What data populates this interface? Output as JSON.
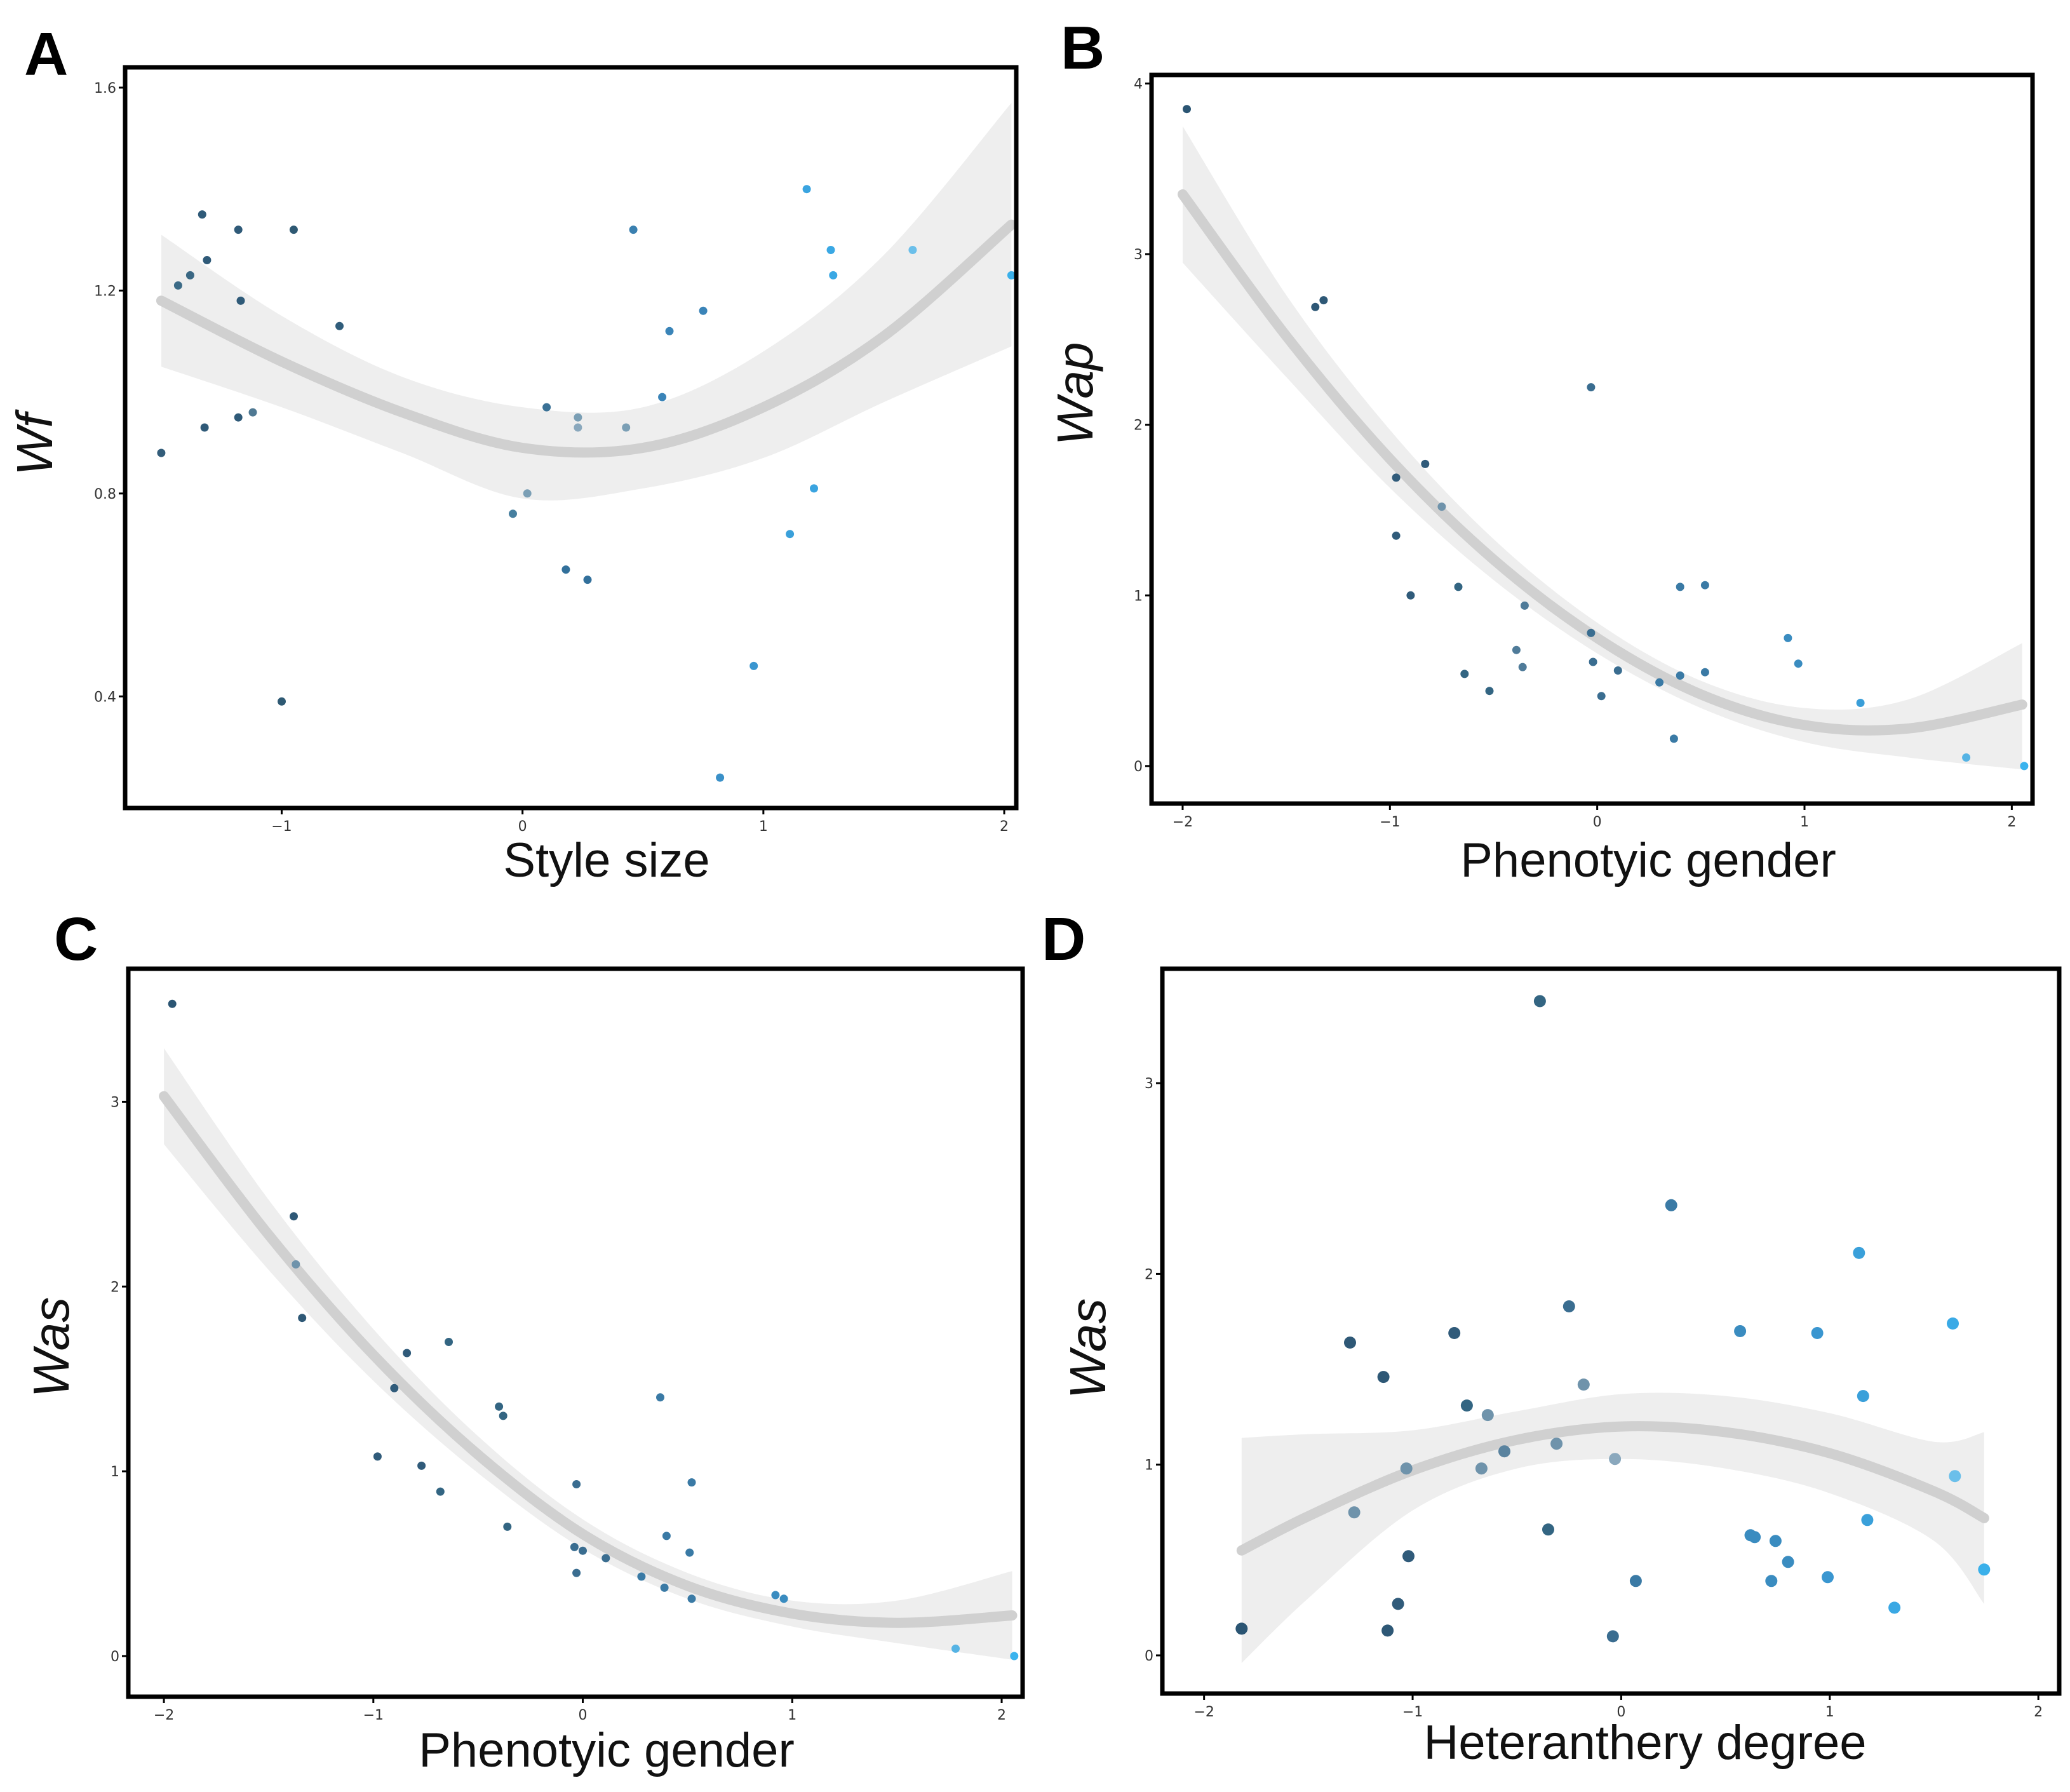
{
  "chart_data": [
    {
      "label": "A",
      "type": "scatter",
      "xlabel": "Style size",
      "ylabel": "Wf",
      "xlim": [
        -1.65,
        2.05
      ],
      "ylim": [
        0.18,
        1.64
      ],
      "xticks": [
        -1,
        0,
        1,
        2
      ],
      "yticks": [
        0.4,
        0.8,
        1.2,
        1.6
      ],
      "points": [
        [
          -1.5,
          0.88,
          "#335d7a"
        ],
        [
          -1.43,
          1.21,
          "#3b6a86"
        ],
        [
          -1.38,
          1.23,
          "#3a6783"
        ],
        [
          -1.33,
          1.35,
          "#2f5a78"
        ],
        [
          -1.31,
          1.26,
          "#2f5a78"
        ],
        [
          -1.32,
          0.93,
          "#2f5a78"
        ],
        [
          -1.18,
          1.32,
          "#2f5a78"
        ],
        [
          -1.17,
          1.18,
          "#2f5a78"
        ],
        [
          -1.18,
          0.95,
          "#2f5a78"
        ],
        [
          -1.12,
          0.96,
          "#4f7993"
        ],
        [
          -1.0,
          0.39,
          "#2e5973"
        ],
        [
          -0.95,
          1.32,
          "#2e5973"
        ],
        [
          -0.76,
          1.13,
          "#305d7b"
        ],
        [
          -0.04,
          0.76,
          "#467f9f"
        ],
        [
          0.02,
          0.8,
          "#7b9fb5"
        ],
        [
          0.1,
          0.97,
          "#3a7196"
        ],
        [
          0.18,
          0.65,
          "#32709b"
        ],
        [
          0.23,
          0.93,
          "#8aa8bd"
        ],
        [
          0.23,
          0.95,
          "#7b9fb5"
        ],
        [
          0.27,
          0.63,
          "#32709b"
        ],
        [
          0.43,
          0.93,
          "#7b9fb5"
        ],
        [
          0.46,
          1.32,
          "#3a80b0"
        ],
        [
          0.58,
          0.99,
          "#3a84b8"
        ],
        [
          0.61,
          1.12,
          "#3a84b8"
        ],
        [
          0.75,
          1.16,
          "#3a84b8"
        ],
        [
          0.82,
          0.24,
          "#3a90c8"
        ],
        [
          0.96,
          0.46,
          "#3a96d0"
        ],
        [
          1.11,
          0.72,
          "#3aa0da"
        ],
        [
          1.18,
          1.4,
          "#3aa4e0"
        ],
        [
          1.21,
          0.81,
          "#3aa4e0"
        ],
        [
          1.28,
          1.28,
          "#3aa8e4"
        ],
        [
          1.29,
          1.23,
          "#3aa8e4"
        ],
        [
          1.62,
          1.28,
          "#6bbfea"
        ],
        [
          2.03,
          1.23,
          "#3ab0ea"
        ]
      ],
      "fit_x": [
        -1.5,
        -1.0,
        -0.5,
        0.0,
        0.5,
        1.0,
        1.5,
        2.03
      ],
      "fit_y": [
        1.18,
        1.06,
        0.96,
        0.89,
        0.89,
        0.97,
        1.11,
        1.33
      ],
      "band_lower": [
        1.05,
        0.97,
        0.88,
        0.79,
        0.81,
        0.87,
        0.98,
        1.09
      ],
      "band_upper": [
        1.31,
        1.15,
        1.03,
        0.97,
        0.97,
        1.08,
        1.27,
        1.57
      ]
    },
    {
      "label": "B",
      "type": "scatter",
      "xlabel": "Phenotyic gender",
      "ylabel": "Wap",
      "xlim": [
        -2.15,
        2.1
      ],
      "ylim": [
        -0.22,
        4.05
      ],
      "xticks": [
        -2,
        -1,
        0,
        1,
        2
      ],
      "yticks": [
        0,
        1,
        2,
        3,
        4
      ],
      "points": [
        [
          -1.98,
          3.85,
          "#2b5573"
        ],
        [
          -1.36,
          2.69,
          "#2e5876"
        ],
        [
          -1.32,
          2.73,
          "#2e5876"
        ],
        [
          -0.97,
          1.69,
          "#305b7a"
        ],
        [
          -0.97,
          1.35,
          "#305b7a"
        ],
        [
          -0.9,
          1.0,
          "#305b7a"
        ],
        [
          -0.83,
          1.77,
          "#305b7a"
        ],
        [
          -0.75,
          1.52,
          "#6f93ab"
        ],
        [
          -0.67,
          1.05,
          "#336582"
        ],
        [
          -0.64,
          0.54,
          "#336582"
        ],
        [
          -0.52,
          0.44,
          "#336582"
        ],
        [
          -0.39,
          0.68,
          "#4f7b99"
        ],
        [
          -0.36,
          0.58,
          "#4f7b99"
        ],
        [
          -0.35,
          0.94,
          "#4f7b99"
        ],
        [
          -0.03,
          2.22,
          "#3a6d90"
        ],
        [
          -0.02,
          0.61,
          "#3a6d90"
        ],
        [
          -0.03,
          0.78,
          "#3a6d90"
        ],
        [
          0.02,
          0.41,
          "#3a6d90"
        ],
        [
          0.1,
          0.56,
          "#3a6d90"
        ],
        [
          0.3,
          0.49,
          "#3a7aa5"
        ],
        [
          0.37,
          0.16,
          "#3a7aa5"
        ],
        [
          0.4,
          0.53,
          "#3a7aa5"
        ],
        [
          0.4,
          1.05,
          "#3a7aa5"
        ],
        [
          0.52,
          1.06,
          "#3a7aa5"
        ],
        [
          0.52,
          0.55,
          "#3a7aa5"
        ],
        [
          0.92,
          0.75,
          "#3a8cc0"
        ],
        [
          0.97,
          0.6,
          "#3a8cc0"
        ],
        [
          1.27,
          0.37,
          "#3a9ed8"
        ],
        [
          1.78,
          0.05,
          "#55b3e4"
        ],
        [
          2.06,
          0.0,
          "#3ab3ee"
        ]
      ],
      "fit_x": [
        -2.0,
        -1.5,
        -1.0,
        -0.5,
        0.0,
        0.5,
        1.0,
        1.5,
        2.05
      ],
      "fit_y": [
        3.35,
        2.52,
        1.8,
        1.21,
        0.75,
        0.42,
        0.24,
        0.22,
        0.36
      ],
      "band_lower": [
        2.95,
        2.28,
        1.63,
        1.09,
        0.66,
        0.34,
        0.14,
        0.05,
        -0.02
      ],
      "band_upper": [
        3.75,
        2.76,
        1.97,
        1.33,
        0.84,
        0.5,
        0.34,
        0.39,
        0.72
      ]
    },
    {
      "label": "C",
      "type": "scatter",
      "xlabel": "Phenotyic gender",
      "ylabel": "Was",
      "xlim": [
        -2.17,
        2.1
      ],
      "ylim": [
        -0.22,
        3.72
      ],
      "xticks": [
        -2,
        -1,
        0,
        1,
        2
      ],
      "yticks": [
        0,
        1,
        2,
        3
      ],
      "points": [
        [
          -1.96,
          3.53,
          "#2b5573"
        ],
        [
          -1.38,
          2.38,
          "#2e5876"
        ],
        [
          -1.37,
          2.12,
          "#6f93ab"
        ],
        [
          -1.34,
          1.83,
          "#2e5876"
        ],
        [
          -0.98,
          1.08,
          "#305b7a"
        ],
        [
          -0.9,
          1.45,
          "#305b7a"
        ],
        [
          -0.84,
          1.64,
          "#305b7a"
        ],
        [
          -0.77,
          1.03,
          "#305b7a"
        ],
        [
          -0.68,
          0.89,
          "#336582"
        ],
        [
          -0.64,
          1.7,
          "#336582"
        ],
        [
          -0.4,
          1.35,
          "#336582"
        ],
        [
          -0.38,
          1.3,
          "#336582"
        ],
        [
          -0.36,
          0.7,
          "#336582"
        ],
        [
          -0.04,
          0.59,
          "#3a6d90"
        ],
        [
          -0.03,
          0.45,
          "#3a6d90"
        ],
        [
          -0.03,
          0.93,
          "#3a6d90"
        ],
        [
          0.0,
          0.57,
          "#3a6d90"
        ],
        [
          0.11,
          0.53,
          "#3a6d90"
        ],
        [
          0.28,
          0.43,
          "#3a7aa5"
        ],
        [
          0.37,
          1.4,
          "#3a7aa5"
        ],
        [
          0.39,
          0.37,
          "#3a7aa5"
        ],
        [
          0.4,
          0.65,
          "#3a7aa5"
        ],
        [
          0.51,
          0.56,
          "#3a7aa5"
        ],
        [
          0.52,
          0.94,
          "#3a7aa5"
        ],
        [
          0.52,
          0.31,
          "#3a7aa5"
        ],
        [
          0.92,
          0.33,
          "#3a8cc0"
        ],
        [
          0.96,
          0.31,
          "#3a8cc0"
        ],
        [
          1.78,
          0.04,
          "#55b3e4"
        ],
        [
          2.06,
          0.0,
          "#3ab3ee"
        ]
      ],
      "fit_x": [
        -2.0,
        -1.5,
        -1.0,
        -0.5,
        0.0,
        0.5,
        1.0,
        1.5,
        2.05
      ],
      "fit_y": [
        3.03,
        2.28,
        1.63,
        1.09,
        0.66,
        0.38,
        0.23,
        0.18,
        0.22
      ],
      "band_lower": [
        2.77,
        2.09,
        1.49,
        0.99,
        0.58,
        0.31,
        0.16,
        0.07,
        -0.02
      ],
      "band_upper": [
        3.29,
        2.47,
        1.77,
        1.19,
        0.74,
        0.45,
        0.3,
        0.3,
        0.46
      ]
    },
    {
      "label": "D",
      "type": "scatter",
      "xlabel": "Heteranthery degree",
      "ylabel": "Was",
      "xlim": [
        -2.2,
        2.1
      ],
      "ylim": [
        -0.2,
        3.6
      ],
      "xticks": [
        -2,
        -1,
        0,
        1,
        2
      ],
      "yticks": [
        0,
        1,
        2,
        3
      ],
      "points": [
        [
          -1.82,
          0.14,
          "#2b5573"
        ],
        [
          -1.3,
          1.64,
          "#2e5876"
        ],
        [
          -1.28,
          0.75,
          "#6f93ab"
        ],
        [
          -1.14,
          1.46,
          "#2e5876"
        ],
        [
          -1.12,
          0.13,
          "#2e5876"
        ],
        [
          -1.07,
          0.27,
          "#305b7a"
        ],
        [
          -1.02,
          0.52,
          "#305b7a"
        ],
        [
          -1.03,
          0.98,
          "#6f93ab"
        ],
        [
          -0.8,
          1.69,
          "#305b7a"
        ],
        [
          -0.74,
          1.31,
          "#336582"
        ],
        [
          -0.67,
          0.98,
          "#6f93ab"
        ],
        [
          -0.64,
          1.26,
          "#6f93ab"
        ],
        [
          -0.56,
          1.07,
          "#5a839f"
        ],
        [
          -0.39,
          3.43,
          "#336582"
        ],
        [
          -0.35,
          0.66,
          "#336582"
        ],
        [
          -0.31,
          1.11,
          "#6f93ab"
        ],
        [
          -0.25,
          1.83,
          "#3a6d90"
        ],
        [
          -0.18,
          1.42,
          "#6f93ab"
        ],
        [
          -0.04,
          0.1,
          "#3a6d90"
        ],
        [
          -0.03,
          1.03,
          "#8aa8bd"
        ],
        [
          0.07,
          0.39,
          "#3a7aa5"
        ],
        [
          0.24,
          2.36,
          "#3a7aa5"
        ],
        [
          0.57,
          1.7,
          "#3a8cc0"
        ],
        [
          0.62,
          0.63,
          "#3a8cc0"
        ],
        [
          0.64,
          0.62,
          "#3a8cc0"
        ],
        [
          0.72,
          0.39,
          "#3a8cc0"
        ],
        [
          0.74,
          0.6,
          "#3a8cc0"
        ],
        [
          0.8,
          0.49,
          "#3a8cc0"
        ],
        [
          0.94,
          1.69,
          "#3a96d0"
        ],
        [
          0.99,
          0.41,
          "#3a96d0"
        ],
        [
          1.14,
          2.11,
          "#3aa0da"
        ],
        [
          1.16,
          1.36,
          "#3aa0da"
        ],
        [
          1.18,
          0.71,
          "#3aa0da"
        ],
        [
          1.31,
          0.25,
          "#3aa8e4"
        ],
        [
          1.59,
          1.74,
          "#3aaae6"
        ],
        [
          1.6,
          0.94,
          "#6bbfea"
        ],
        [
          1.74,
          0.45,
          "#3ab0ea"
        ]
      ],
      "fit_x": [
        -1.82,
        -1.5,
        -1.0,
        -0.5,
        0.0,
        0.5,
        1.0,
        1.5,
        1.74
      ],
      "fit_y": [
        0.55,
        0.73,
        0.97,
        1.13,
        1.2,
        1.17,
        1.06,
        0.86,
        0.72
      ],
      "band_lower": [
        -0.04,
        0.3,
        0.76,
        0.98,
        1.03,
        0.98,
        0.85,
        0.6,
        0.27
      ],
      "band_upper": [
        1.14,
        1.16,
        1.18,
        1.28,
        1.37,
        1.36,
        1.27,
        1.12,
        1.17
      ]
    }
  ]
}
